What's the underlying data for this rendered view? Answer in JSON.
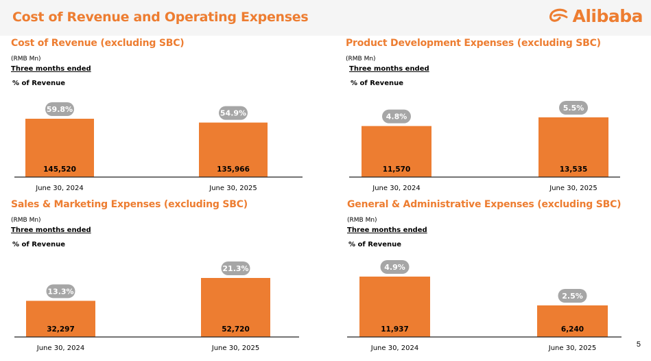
{
  "header": {
    "title": "Cost of Revenue and Operating Expenses",
    "logo_text": "Alibaba"
  },
  "page_number": "5",
  "colors": {
    "accent": "#ed7d31",
    "bar": "#ed7d31",
    "pill": "#a6a6a6"
  },
  "panels": [
    {
      "title": "Cost of Revenue (excluding SBC)",
      "unit": "(RMB Mn)",
      "period": "Three months ended",
      "pct_label": "% of Revenue"
    },
    {
      "title": "Product Development Expenses (excluding SBC)",
      "unit": "(RMB Mn)",
      "period": "Three months ended",
      "pct_label": "% of Revenue"
    },
    {
      "title": "Sales & Marketing Expenses (excluding SBC)",
      "unit": "(RMB Mn)",
      "period": "Three months ended",
      "pct_label": "% of Revenue"
    },
    {
      "title": "General & Administrative Expenses (excluding SBC)",
      "unit": "(RMB Mn)",
      "period": "Three months ended",
      "pct_label": "% of Revenue"
    }
  ],
  "chart_data": [
    {
      "type": "bar",
      "title": "Cost of Revenue (excluding SBC)",
      "categories": [
        "June 30, 2024",
        "June 30, 2025"
      ],
      "values": [
        145520,
        135966
      ],
      "value_labels": [
        "145,520",
        "135,966"
      ],
      "pct_labels": [
        "59.8%",
        "54.9%"
      ],
      "ylim": [
        0,
        150000
      ]
    },
    {
      "type": "bar",
      "title": "Product Development Expenses (excluding SBC)",
      "categories": [
        "June 30, 2024",
        "June 30, 2025"
      ],
      "values": [
        11570,
        13535
      ],
      "value_labels": [
        "11,570",
        "13,535"
      ],
      "pct_labels": [
        "4.8%",
        "5.5%"
      ],
      "ylim": [
        0,
        15500
      ]
    },
    {
      "type": "bar",
      "title": "Sales & Marketing Expenses (excluding SBC)",
      "categories": [
        "June 30, 2024",
        "June 30, 2025"
      ],
      "values": [
        32297,
        52720
      ],
      "value_labels": [
        "32,297",
        "52,720"
      ],
      "pct_labels": [
        "13.3%",
        "21.3%"
      ],
      "ylim": [
        0,
        60000
      ]
    },
    {
      "type": "bar",
      "title": "General & Administrative Expenses (excluding SBC)",
      "categories": [
        "June 30, 2024",
        "June 30, 2025"
      ],
      "values": [
        11937,
        6240
      ],
      "value_labels": [
        "11,937",
        "6,240"
      ],
      "pct_labels": [
        "4.9%",
        "2.5%"
      ],
      "ylim": [
        0,
        13500
      ]
    }
  ]
}
